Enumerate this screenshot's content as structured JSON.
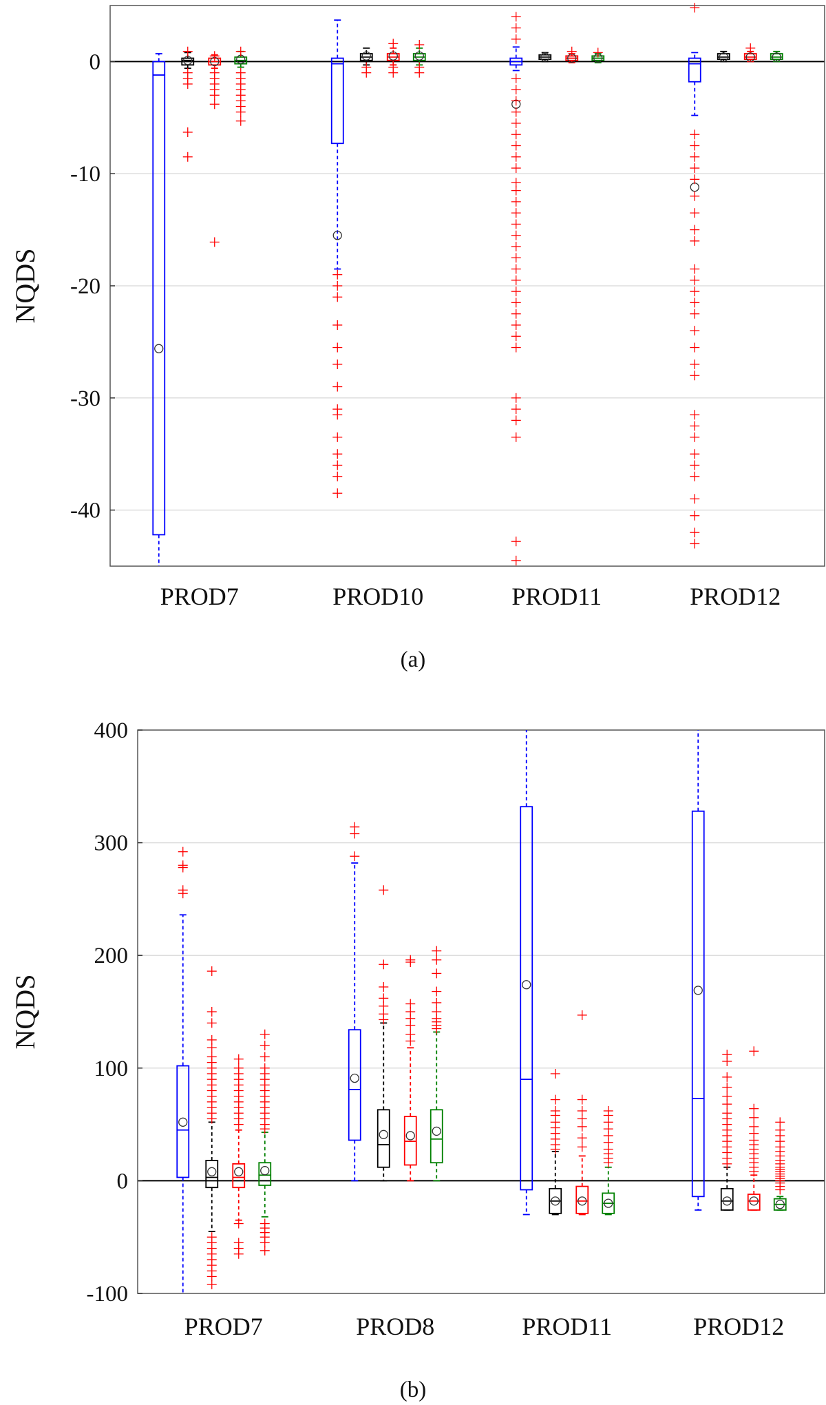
{
  "colors": {
    "series": [
      "#0000ff",
      "#000000",
      "#ff0000",
      "#008000"
    ],
    "outlier": "#ff0000",
    "grid": "#dddddd",
    "frame": "#555555"
  },
  "chart_data": [
    {
      "type": "box",
      "caption": "(a)",
      "ylabel": "NQDS",
      "xlabel": "",
      "ylim": [
        -45,
        5
      ],
      "yticks": [
        0,
        -10,
        -20,
        -30,
        -40
      ],
      "grid": true,
      "zero_line": true,
      "categories": [
        "PROD7",
        "PROD10",
        "PROD11",
        "PROD12"
      ],
      "boxes": [
        {
          "category": "PROD7",
          "series": 0,
          "q1": -42.2,
          "median": -1.2,
          "q3": 0,
          "wlo": -45,
          "whi": 0.7,
          "mean": -25.6,
          "outliers": []
        },
        {
          "category": "PROD7",
          "series": 1,
          "q1": -0.3,
          "median": 0.1,
          "q3": 0.3,
          "wlo": -0.6,
          "whi": 0.8,
          "mean": 0.1,
          "outliers": [
            -6.3,
            -8.5,
            -2,
            -1.5,
            -1,
            0.9
          ]
        },
        {
          "category": "PROD7",
          "series": 2,
          "q1": -0.3,
          "median": 0,
          "q3": 0.3,
          "wlo": -0.6,
          "whi": 0.6,
          "mean": 0,
          "outliers": [
            -1,
            -1.5,
            -2,
            -2.5,
            -3,
            -3.8,
            -16.1,
            0.5
          ]
        },
        {
          "category": "PROD7",
          "series": 3,
          "q1": -0.2,
          "median": 0.1,
          "q3": 0.4,
          "wlo": -0.5,
          "whi": 0.9,
          "mean": 0.2,
          "outliers": [
            -1,
            -1.5,
            -2,
            -2.5,
            -3,
            -3.5,
            -4,
            -4.5,
            -5.3,
            0.9
          ]
        },
        {
          "category": "PROD10",
          "series": 0,
          "q1": -7.3,
          "median": -0.2,
          "q3": 0.3,
          "wlo": -18.5,
          "whi": 3.7,
          "mean": -15.5,
          "outliers": [
            -19,
            -20,
            -21,
            -23.5,
            -25.5,
            -27,
            -29,
            -31,
            -31.5,
            -33.5,
            -35,
            -36,
            -37,
            -38.5
          ]
        },
        {
          "category": "PROD10",
          "series": 1,
          "q1": 0.1,
          "median": 0.4,
          "q3": 0.7,
          "wlo": -0.3,
          "whi": 1.2,
          "mean": 0.5,
          "outliers": [
            -0.5,
            -1
          ]
        },
        {
          "category": "PROD10",
          "series": 2,
          "q1": 0.1,
          "median": 0.4,
          "q3": 0.7,
          "wlo": -0.3,
          "whi": 1.2,
          "mean": 0.5,
          "outliers": [
            -0.5,
            -1,
            1.6
          ]
        },
        {
          "category": "PROD10",
          "series": 3,
          "q1": 0.1,
          "median": 0.4,
          "q3": 0.7,
          "wlo": -0.3,
          "whi": 1.2,
          "mean": 0.5,
          "outliers": [
            -0.5,
            -1,
            1.5
          ]
        },
        {
          "category": "PROD11",
          "series": 0,
          "q1": -0.3,
          "median": 0,
          "q3": 0.3,
          "wlo": -0.8,
          "whi": 1.3,
          "mean": -3.8,
          "outliers": [
            4,
            3,
            2,
            -1.5,
            -2.5,
            -3.5,
            -4.5,
            -5.5,
            -6.5,
            -7.5,
            -8.5,
            -9.5,
            -10.8,
            -11.5,
            -12.5,
            -13.5,
            -14.5,
            -15.5,
            -16.5,
            -17.5,
            -18.5,
            -19.5,
            -20.5,
            -21.5,
            -22.5,
            -23.5,
            -24.5,
            -25.5,
            -30,
            -31,
            -32,
            -33.5,
            -42.8,
            -44.5
          ]
        },
        {
          "category": "PROD11",
          "series": 1,
          "q1": 0.2,
          "median": 0.4,
          "q3": 0.6,
          "wlo": 0,
          "whi": 0.8,
          "mean": 0.4,
          "outliers": []
        },
        {
          "category": "PROD11",
          "series": 2,
          "q1": 0.1,
          "median": 0.3,
          "q3": 0.5,
          "wlo": -0.1,
          "whi": 0.7,
          "mean": 0.3,
          "outliers": [
            0.9
          ]
        },
        {
          "category": "PROD11",
          "series": 3,
          "q1": 0.1,
          "median": 0.3,
          "q3": 0.5,
          "wlo": -0.1,
          "whi": 0.7,
          "mean": 0.3,
          "outliers": [
            0.8
          ]
        },
        {
          "category": "PROD12",
          "series": 0,
          "q1": -1.8,
          "median": -0.2,
          "q3": 0.3,
          "wlo": -4.8,
          "whi": 0.8,
          "mean": -11.2,
          "outliers": [
            4.8,
            -6.5,
            -7.5,
            -8.5,
            -9.5,
            -10.5,
            -12,
            -13.5,
            -15,
            -16,
            -18.5,
            -19.5,
            -20.5,
            -21.5,
            -22.5,
            -24,
            -25.5,
            -27,
            -28,
            -31.5,
            -32.5,
            -33.5,
            -35,
            -36,
            -37,
            -39,
            -40.5,
            -42,
            -43
          ]
        },
        {
          "category": "PROD12",
          "series": 1,
          "q1": 0.2,
          "median": 0.4,
          "q3": 0.7,
          "wlo": 0,
          "whi": 0.9,
          "mean": 0.4,
          "outliers": []
        },
        {
          "category": "PROD12",
          "series": 2,
          "q1": 0.2,
          "median": 0.4,
          "q3": 0.7,
          "wlo": 0,
          "whi": 0.9,
          "mean": 0.4,
          "outliers": [
            1.2
          ]
        },
        {
          "category": "PROD12",
          "series": 3,
          "q1": 0.2,
          "median": 0.4,
          "q3": 0.7,
          "wlo": 0,
          "whi": 0.9,
          "mean": 0.4,
          "outliers": []
        }
      ]
    },
    {
      "type": "box",
      "caption": "(b)",
      "ylabel": "NQDS",
      "xlabel": "",
      "ylim": [
        -100,
        400
      ],
      "yticks": [
        400,
        300,
        200,
        100,
        0,
        -100
      ],
      "grid": true,
      "zero_line": true,
      "categories": [
        "PROD7",
        "PROD8",
        "PROD11",
        "PROD12"
      ],
      "boxes": [
        {
          "category": "PROD7",
          "series": 0,
          "q1": 3,
          "median": 45,
          "q3": 102,
          "wlo": -100,
          "whi": 236,
          "mean": 52,
          "outliers": [
            255,
            258,
            278,
            280,
            292
          ]
        },
        {
          "category": "PROD7",
          "series": 1,
          "q1": -6,
          "median": 3,
          "q3": 18,
          "wlo": -45,
          "whi": 52,
          "mean": 8,
          "outliers": [
            55,
            60,
            65,
            70,
            75,
            80,
            85,
            90,
            95,
            100,
            105,
            110,
            118,
            125,
            140,
            150,
            186,
            -50,
            -55,
            -60,
            -65,
            -70,
            -75,
            -80,
            -85,
            -92
          ]
        },
        {
          "category": "PROD7",
          "series": 2,
          "q1": -6,
          "median": 3,
          "q3": 15,
          "wlo": -35,
          "whi": 45,
          "mean": 8,
          "outliers": [
            50,
            55,
            60,
            65,
            70,
            75,
            80,
            85,
            90,
            95,
            100,
            108,
            -38,
            -55,
            -60,
            -65
          ]
        },
        {
          "category": "PROD7",
          "series": 3,
          "q1": -4,
          "median": 5,
          "q3": 16,
          "wlo": -32,
          "whi": 43,
          "mean": 9,
          "outliers": [
            46,
            50,
            55,
            60,
            65,
            70,
            75,
            80,
            85,
            90,
            95,
            100,
            110,
            120,
            130,
            -38,
            -42,
            -46,
            -50,
            -55,
            -62
          ]
        },
        {
          "category": "PROD8",
          "series": 0,
          "q1": 36,
          "median": 81,
          "q3": 134,
          "wlo": 0,
          "whi": 282,
          "mean": 91,
          "outliers": [
            288,
            308,
            314
          ]
        },
        {
          "category": "PROD8",
          "series": 1,
          "q1": 12,
          "median": 32,
          "q3": 63,
          "wlo": 0,
          "whi": 140,
          "mean": 41,
          "outliers": [
            143,
            148,
            155,
            162,
            172,
            192,
            258
          ]
        },
        {
          "category": "PROD8",
          "series": 2,
          "q1": 14,
          "median": 35,
          "q3": 57,
          "wlo": 0,
          "whi": 118,
          "mean": 40,
          "outliers": [
            124,
            130,
            138,
            144,
            150,
            157,
            194,
            196
          ]
        },
        {
          "category": "PROD8",
          "series": 3,
          "q1": 16,
          "median": 37,
          "q3": 63,
          "wlo": 0,
          "whi": 132,
          "mean": 44,
          "outliers": [
            135,
            138,
            141,
            144,
            150,
            158,
            168,
            184,
            196,
            204
          ]
        },
        {
          "category": "PROD11",
          "series": 0,
          "q1": -8,
          "median": 90,
          "q3": 332,
          "wlo": -30,
          "whi": 400,
          "mean": 174,
          "outliers": []
        },
        {
          "category": "PROD11",
          "series": 1,
          "q1": -29,
          "median": -18,
          "q3": -7,
          "wlo": -30,
          "whi": 26,
          "mean": -18,
          "outliers": [
            28,
            32,
            37,
            42,
            47,
            52,
            58,
            62,
            72,
            95
          ]
        },
        {
          "category": "PROD11",
          "series": 2,
          "q1": -29,
          "median": -18,
          "q3": -5,
          "wlo": -30,
          "whi": 22,
          "mean": -18,
          "outliers": [
            30,
            38,
            48,
            55,
            62,
            72,
            147
          ]
        },
        {
          "category": "PROD11",
          "series": 3,
          "q1": -29,
          "median": -20,
          "q3": -11,
          "wlo": -30,
          "whi": 12,
          "mean": -20,
          "outliers": [
            16,
            20,
            24,
            28,
            34,
            40,
            46,
            52,
            58,
            62
          ]
        },
        {
          "category": "PROD12",
          "series": 0,
          "q1": -14,
          "median": 73,
          "q3": 328,
          "wlo": -26,
          "whi": 400,
          "mean": 169,
          "outliers": []
        },
        {
          "category": "PROD12",
          "series": 1,
          "q1": -26,
          "median": -18,
          "q3": -7,
          "wlo": -26,
          "whi": 12,
          "mean": -18,
          "outliers": [
            15,
            20,
            25,
            30,
            35,
            40,
            45,
            50,
            55,
            60,
            68,
            75,
            83,
            92,
            106,
            112
          ]
        },
        {
          "category": "PROD12",
          "series": 2,
          "q1": -26,
          "median": -18,
          "q3": -12,
          "wlo": -26,
          "whi": 5,
          "mean": -18,
          "outliers": [
            8,
            12,
            16,
            20,
            24,
            28,
            32,
            36,
            42,
            48,
            56,
            64,
            115
          ]
        },
        {
          "category": "PROD12",
          "series": 3,
          "q1": -26,
          "median": -21,
          "q3": -16,
          "wlo": -26,
          "whi": -14,
          "mean": -21,
          "outliers": [
            -8,
            -5,
            -2,
            0,
            2,
            4,
            6,
            8,
            10,
            12,
            15,
            18,
            22,
            26,
            30,
            35,
            40,
            45,
            52
          ]
        }
      ]
    }
  ]
}
